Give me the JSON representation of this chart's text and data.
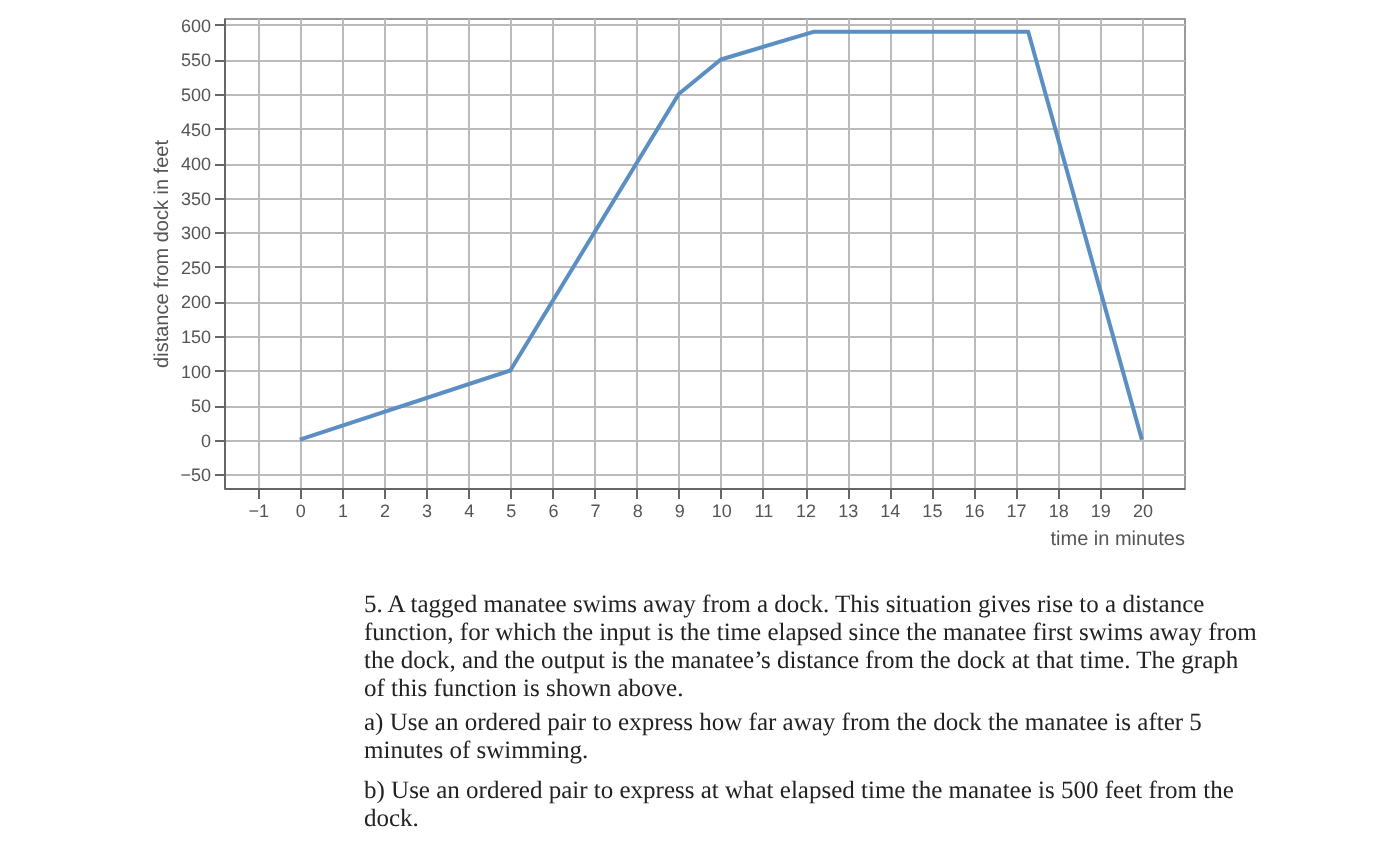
{
  "chart_data": {
    "type": "line",
    "xlabel": "time in minutes",
    "ylabel": "distance from dock in feet",
    "x": [
      0,
      5,
      9,
      10,
      12.2,
      17.3,
      20
    ],
    "series": [
      {
        "color": "#5b8ec2",
        "values": [
          0,
          100,
          500,
          550,
          590,
          590,
          0
        ]
      }
    ],
    "xlim": [
      -1.8,
      21
    ],
    "xticks": [
      -1,
      0,
      1,
      2,
      3,
      4,
      5,
      6,
      7,
      8,
      9,
      10,
      11,
      12,
      13,
      14,
      15,
      16,
      17,
      18,
      19,
      20
    ],
    "ylim": [
      -70,
      610
    ],
    "yticks": [
      -50,
      0,
      50,
      100,
      150,
      200,
      250,
      300,
      350,
      400,
      450,
      500,
      550,
      600
    ],
    "grid": true,
    "marker": "none",
    "line_style": "solid",
    "annotations": [
      "5. A tagged manatee swims away from a dock. This situation gives rise to a distance function, for which the input is the time elapsed since the manatee first swims away from the dock, and the output is the manatee’s distance from the dock at that time. The graph of this function is shown above.",
      "a) Use an ordered pair to express how far away from the dock the manatee is after 5 minutes of swimming.",
      "b) Use an ordered pair to express at what elapsed time the manatee is 500 feet from the dock."
    ]
  }
}
